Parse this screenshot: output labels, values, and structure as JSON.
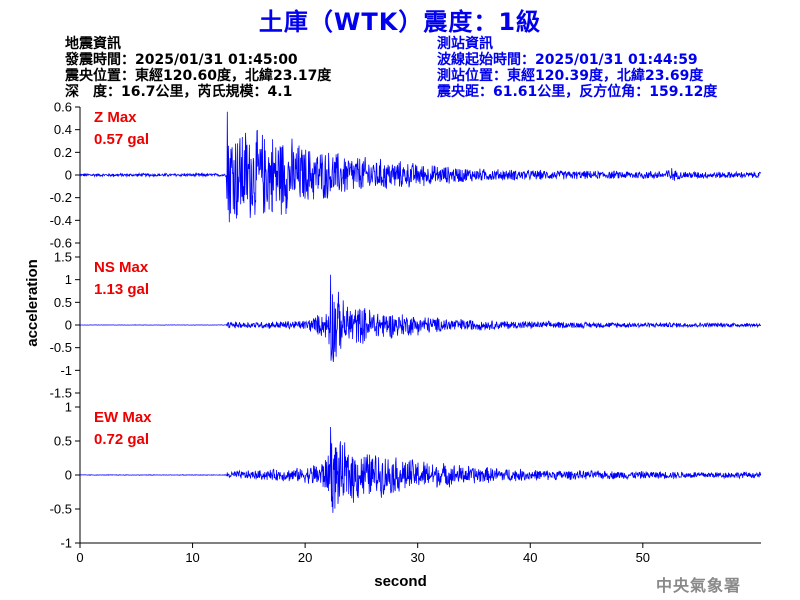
{
  "title": "土庫（WTK）震度：1級",
  "event_info": {
    "header": "地震資訊",
    "origin_time": "發震時間：2025/01/31 01:45:00",
    "epicenter": "震央位置：東經120.60度，北緯23.17度",
    "depth_magnitude": "深　度：16.7公里，芮氏規模：4.1"
  },
  "station_info": {
    "header": "測站資訊",
    "wave_start": "波線起始時間：2025/01/31 01:44:59",
    "station_location": "測站位置：東經120.39度，北緯23.69度",
    "distance_azimuth": "震央距：61.61公里，反方位角：159.12度"
  },
  "agency": "中央氣象署",
  "colors": {
    "title": "#0000ee",
    "trace": "#0000ff",
    "max_label": "#ee0000",
    "station_info": "#0000ee",
    "agency": "#8a8a8a"
  },
  "chart_data": {
    "type": "line",
    "xlabel": "second",
    "ylabel": "acceleration",
    "xlim": [
      0,
      60.5
    ],
    "xticks": [
      0,
      10,
      20,
      30,
      40,
      50
    ],
    "grid": false,
    "panels": [
      {
        "component": "Z",
        "max_line1": "Z Max",
        "max_line2": "0.57 gal",
        "peak": 0.57,
        "ylim": [
          -0.6,
          0.6
        ],
        "yticks": [
          0.6,
          0.4,
          0.2,
          0,
          -0.2,
          -0.4,
          -0.6
        ],
        "yticklabels": [
          "0.6",
          "0.4",
          "0.2",
          "0",
          "-0.2",
          "-0.4",
          "-0.6"
        ],
        "envelope": {
          "x": [
            0,
            13.0,
            13.1,
            14,
            16,
            18,
            20,
            22,
            25,
            28,
            32,
            36,
            40,
            45,
            52,
            52.5,
            53,
            55,
            60.5
          ],
          "amp": [
            0.015,
            0.015,
            0.55,
            0.5,
            0.42,
            0.4,
            0.28,
            0.24,
            0.18,
            0.14,
            0.09,
            0.06,
            0.05,
            0.04,
            0.04,
            0.08,
            0.04,
            0.035,
            0.03
          ]
        }
      },
      {
        "component": "NS",
        "max_line1": "NS Max",
        "max_line2": "1.13 gal",
        "peak": 1.13,
        "ylim": [
          -1.5,
          1.5
        ],
        "yticks": [
          1.5,
          1,
          0.5,
          0,
          -0.5,
          -1,
          -1.5
        ],
        "yticklabels": [
          "1.5",
          "1",
          "0.5",
          "0",
          "-0.5",
          "-1",
          "-1.5"
        ],
        "envelope": {
          "x": [
            0,
            13.0,
            13.1,
            16,
            20,
            22.0,
            22.3,
            22.7,
            23.2,
            25,
            28,
            32,
            36,
            40,
            45,
            52,
            60.5
          ],
          "amp": [
            0.004,
            0.004,
            0.08,
            0.08,
            0.12,
            0.35,
            1.1,
            1.0,
            0.6,
            0.45,
            0.3,
            0.18,
            0.12,
            0.09,
            0.07,
            0.06,
            0.05
          ]
        }
      },
      {
        "component": "EW",
        "max_line1": "EW Max",
        "max_line2": "0.72 gal",
        "peak": 0.72,
        "ylim": [
          -1,
          1
        ],
        "yticks": [
          1,
          0.5,
          0,
          -0.5,
          -1
        ],
        "yticklabels": [
          "1",
          "0.5",
          "0",
          "-0.5",
          "-1"
        ],
        "envelope": {
          "x": [
            0,
            13.0,
            13.1,
            16,
            20,
            22.0,
            22.3,
            22.8,
            25,
            28,
            32,
            36,
            40,
            45,
            52,
            60.5
          ],
          "amp": [
            0.004,
            0.004,
            0.06,
            0.08,
            0.12,
            0.3,
            0.7,
            0.55,
            0.4,
            0.3,
            0.2,
            0.13,
            0.09,
            0.07,
            0.06,
            0.05
          ]
        }
      }
    ]
  }
}
